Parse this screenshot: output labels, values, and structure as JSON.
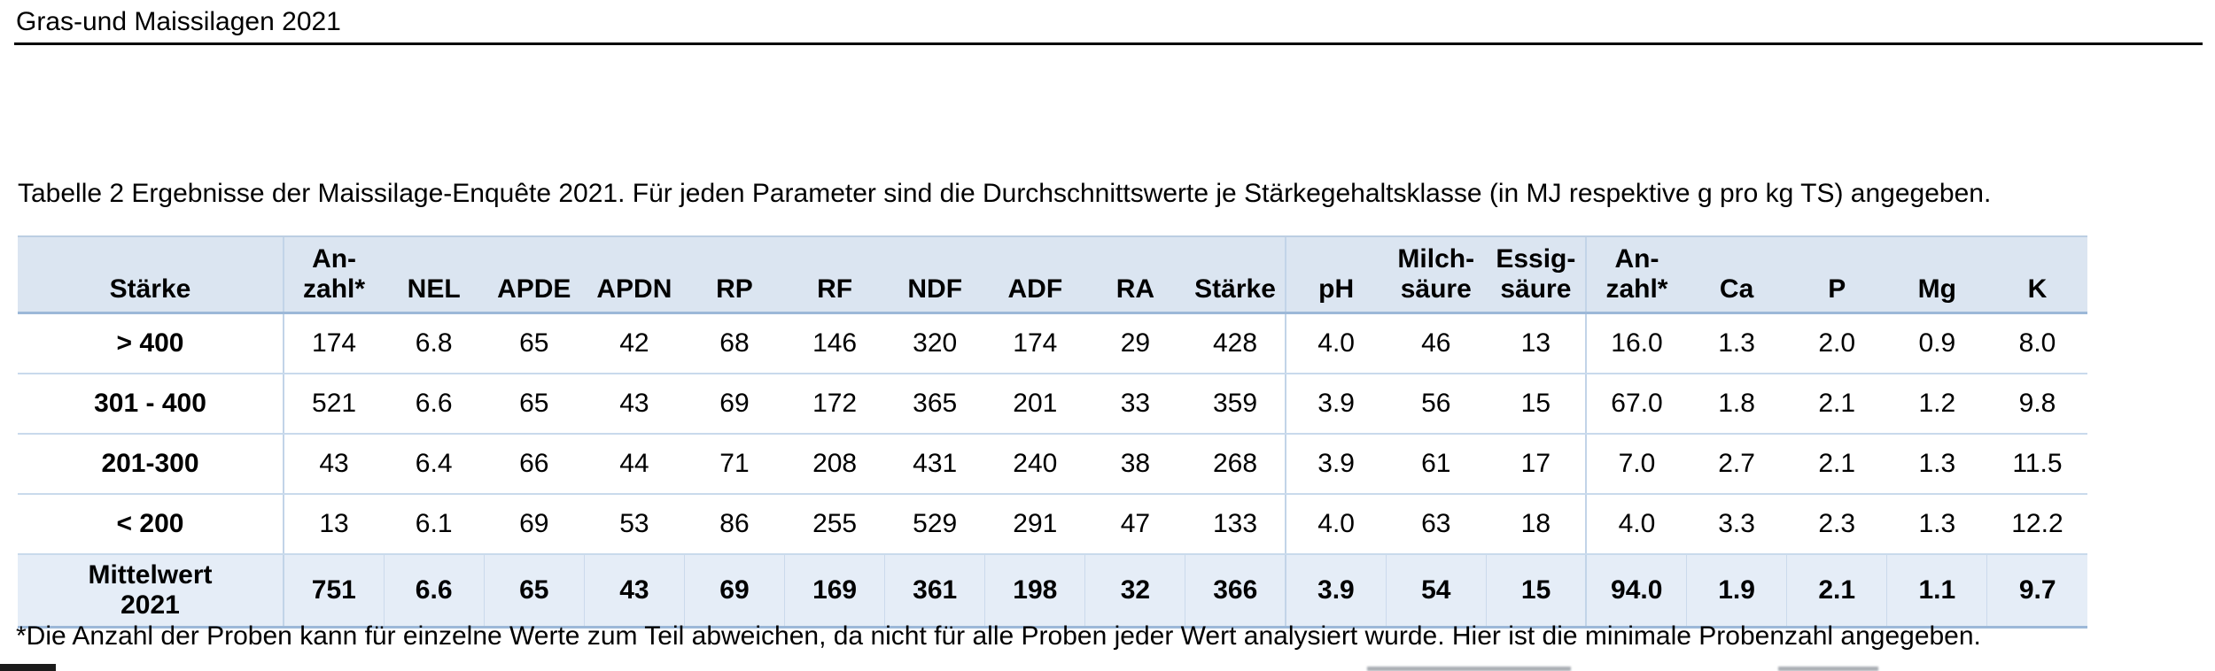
{
  "page": {
    "title": "Gras-und Maissilagen 2021",
    "caption": "Tabelle 2 Ergebnisse der Maissilage-Enquête 2021. Für jeden Parameter sind die Durchschnittswerte je Stärkegehaltsklasse (in MJ respektive g pro kg TS) angegeben.",
    "footnote": "*Die Anzahl der Proben kann für einzelne Werte zum Teil abweichen, da nicht für alle Proben jeder Wert analysiert wurde. Hier ist die minimale Probenzahl angegeben."
  },
  "colors": {
    "page_bg": "#ffffff",
    "text": "#000000",
    "title_rule": "#000000",
    "header_fill": "#dbe5f1",
    "summary_fill": "#e5edf7",
    "row_border": "#c9daec",
    "group_divider": "#c2d4e8",
    "strong_border": "#9cb8d8"
  },
  "table": {
    "columns": [
      "Stärke",
      "An-\nzahl*",
      "NEL",
      "APDE",
      "APDN",
      "RP",
      "RF",
      "NDF",
      "ADF",
      "RA",
      "Stärke",
      "pH",
      "Milch-\nsäure",
      "Essig-\nsäure",
      "An-\nzahl*",
      "Ca",
      "P",
      "Mg",
      "K"
    ],
    "rows": [
      {
        "label": "> 400",
        "values": [
          "174",
          "6.8",
          "65",
          "42",
          "68",
          "146",
          "320",
          "174",
          "29",
          "428",
          "4.0",
          "46",
          "13",
          "16.0",
          "1.3",
          "2.0",
          "0.9",
          "8.0"
        ]
      },
      {
        "label": "301 - 400",
        "values": [
          "521",
          "6.6",
          "65",
          "43",
          "69",
          "172",
          "365",
          "201",
          "33",
          "359",
          "3.9",
          "56",
          "15",
          "67.0",
          "1.8",
          "2.1",
          "1.2",
          "9.8"
        ]
      },
      {
        "label": "201-300",
        "values": [
          "43",
          "6.4",
          "66",
          "44",
          "71",
          "208",
          "431",
          "240",
          "38",
          "268",
          "3.9",
          "61",
          "17",
          "7.0",
          "2.7",
          "2.1",
          "1.3",
          "11.5"
        ]
      },
      {
        "label": "< 200",
        "values": [
          "13",
          "6.1",
          "69",
          "53",
          "86",
          "255",
          "529",
          "291",
          "47",
          "133",
          "4.0",
          "63",
          "18",
          "4.0",
          "3.3",
          "2.3",
          "1.3",
          "12.2"
        ]
      },
      {
        "label": "Mittelwert\n2021",
        "values": [
          "751",
          "6.6",
          "65",
          "43",
          "69",
          "169",
          "361",
          "198",
          "32",
          "366",
          "3.9",
          "54",
          "15",
          "94.0",
          "1.9",
          "2.1",
          "1.1",
          "9.7"
        ]
      }
    ]
  }
}
